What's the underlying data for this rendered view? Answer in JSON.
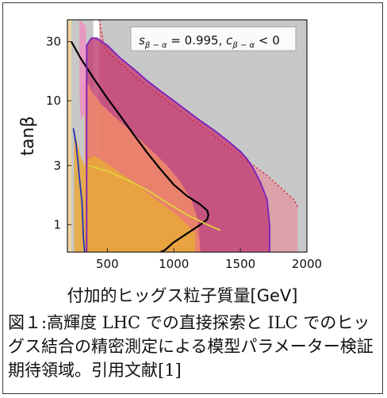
{
  "chart_data": {
    "type": "area",
    "xlabel": "付加的ヒッグス粒子質量[GeV]",
    "ylabel": "tanβ",
    "annotation": "s_{β−α} = 0.995, c_{β−α} < 0",
    "annotation_parts": {
      "s": "s",
      "s_sub": "β − α",
      "s_value": " = 0.995, ",
      "c": "c",
      "c_sub": "β − α",
      "c_value": " < 0"
    },
    "x_ticks": [
      "500",
      "1000",
      "1500",
      "2000"
    ],
    "y_ticks": [
      "1",
      "3",
      "10",
      "30"
    ],
    "x_tick_values": [
      500,
      1000,
      1500,
      2000
    ],
    "y_tick_values": [
      1,
      3,
      10,
      30
    ],
    "xlim": [
      200,
      2000
    ],
    "ylim": [
      0.6,
      45
    ],
    "y_scale": "log",
    "grid": false,
    "regions": [
      {
        "color": "#c8c8c8",
        "note": "gray excluded band, upper right"
      },
      {
        "color": "#dca0a8",
        "note": "pink region with dotted red boundary",
        "x": [
          440,
          470,
          500,
          600,
          700,
          800,
          900,
          1000,
          1100,
          1200,
          1300,
          1400,
          1500,
          1600,
          1700,
          1800,
          1900,
          1930,
          1930,
          440
        ],
        "y": [
          45,
          30,
          25,
          20,
          16,
          13,
          11,
          9,
          7.5,
          6.3,
          5.2,
          4.3,
          3.6,
          3.0,
          2.5,
          2.0,
          1.6,
          1.4,
          0.6,
          0.6
        ]
      },
      {
        "color": "#c2477a",
        "note": "magenta region with purple boundary",
        "x": [
          345,
          380,
          420,
          500,
          600,
          700,
          800,
          900,
          1000,
          1100,
          1200,
          1300,
          1400,
          1500,
          1550,
          1600,
          1650,
          1700,
          1720,
          1720,
          345
        ],
        "y": [
          28,
          32,
          32,
          28,
          22,
          18,
          14.5,
          12,
          10,
          8.3,
          6.9,
          5.8,
          4.8,
          3.9,
          3.4,
          2.8,
          2.2,
          1.6,
          1.0,
          0.6,
          0.6
        ]
      },
      {
        "color": "#f08a6a",
        "note": "salmon region",
        "x": [
          330,
          380,
          450,
          550,
          650,
          750,
          850,
          950,
          1050,
          1130,
          1180,
          1200,
          330
        ],
        "y": [
          16,
          12,
          9.5,
          7.5,
          6,
          4.8,
          3.8,
          3.0,
          2.2,
          1.6,
          1.1,
          0.6,
          0.6
        ]
      },
      {
        "color": "#e7a838",
        "note": "orange region",
        "x": [
          250,
          270,
          300,
          330,
          360,
          400,
          500,
          600,
          700,
          800,
          900,
          1000,
          1100,
          1160,
          1160,
          250
        ],
        "y": [
          6,
          4.8,
          3.5,
          3.0,
          3.4,
          3.6,
          3.1,
          2.6,
          2.2,
          1.8,
          1.5,
          1.25,
          1.0,
          0.85,
          0.6,
          0.6
        ]
      }
    ],
    "curves": [
      {
        "name": "",
        "color": "#000000",
        "x": [
          230,
          300,
          400,
          500,
          600,
          700,
          800,
          900,
          1000,
          1100,
          1200,
          1250,
          1260,
          1250,
          1200,
          1100,
          1000,
          930,
          900
        ],
        "y": [
          30,
          22,
          15,
          10.5,
          7.5,
          5.3,
          3.8,
          2.8,
          2.1,
          1.7,
          1.45,
          1.3,
          1.2,
          1.1,
          1.0,
          0.85,
          0.72,
          0.62,
          0.6
        ]
      },
      {
        "name": "",
        "color": "#2233bb",
        "x": [
          245,
          265,
          280,
          290,
          300,
          310,
          315,
          320,
          330
        ],
        "y": [
          6,
          4.5,
          3.2,
          2.4,
          1.9,
          1.5,
          1.1,
          0.8,
          0.6
        ]
      },
      {
        "name": "",
        "color": "#7a1fbf",
        "x": [
          345,
          345,
          380,
          420,
          500,
          600,
          700,
          800,
          900,
          1000,
          1100,
          1200,
          1300,
          1400,
          1500,
          1550,
          1600,
          1650,
          1700,
          1720,
          1720
        ],
        "y": [
          0.6,
          28,
          32,
          32,
          28,
          22,
          18,
          14.5,
          12,
          10,
          8.3,
          6.9,
          5.8,
          4.8,
          3.9,
          3.4,
          2.8,
          2.2,
          1.6,
          1.0,
          0.6
        ]
      },
      {
        "name": "",
        "color": "#e2d23a",
        "x": [
          360,
          500,
          650,
          800,
          950,
          1100,
          1250,
          1350
        ],
        "y": [
          3.0,
          2.7,
          2.3,
          1.9,
          1.5,
          1.2,
          1.0,
          0.9
        ]
      }
    ]
  },
  "caption": "図１:高輝度 LHC での直接探索と ILC でのヒッグス結合の精密測定による模型パラメーター検証期待領域。引用文献[1]"
}
